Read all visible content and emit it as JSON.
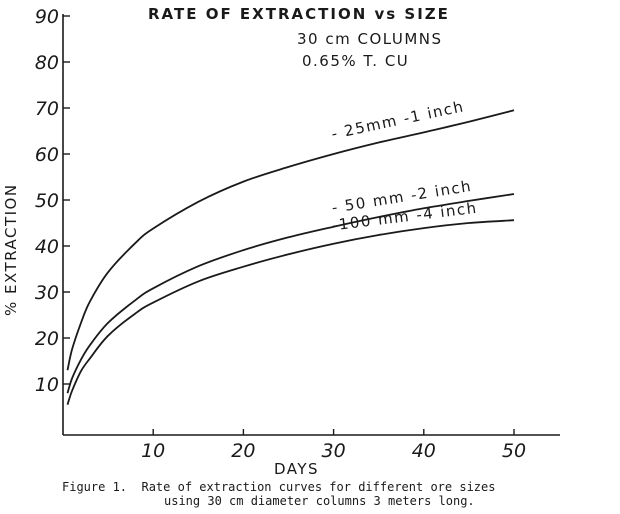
{
  "chart_data": {
    "type": "line",
    "title": "RATE OF EXTRACTION vs SIZE",
    "subtitle_lines": [
      "30 cm COLUMNS",
      "0.65% T. CU"
    ],
    "xlabel": "DAYS",
    "ylabel": "% EXTRACTION",
    "xlim": [
      0,
      55
    ],
    "ylim": [
      0,
      90
    ],
    "x_ticks": [
      10,
      20,
      30,
      40,
      50
    ],
    "x_tick_labels": [
      "10",
      "20",
      "30",
      "40",
      "50"
    ],
    "y_ticks": [
      10,
      20,
      30,
      40,
      50,
      60,
      70,
      80,
      90
    ],
    "y_tick_labels": [
      "10",
      "20",
      "30",
      "40",
      "50",
      "60",
      "70",
      "80",
      "90"
    ],
    "grid": false,
    "series": [
      {
        "name": "- 25mm -1 inch",
        "x": [
          0.5,
          1,
          2,
          3,
          5,
          8,
          10,
          15,
          20,
          25,
          30,
          35,
          40,
          45,
          50
        ],
        "y": [
          13,
          17.5,
          23.3,
          28,
          34.3,
          40.6,
          43.8,
          49.6,
          54,
          57.2,
          60,
          62.5,
          64.7,
          67,
          69.5
        ]
      },
      {
        "name": "- 50 mm -2 inch",
        "x": [
          0.5,
          1,
          2,
          3,
          5,
          8,
          10,
          15,
          20,
          25,
          30,
          35,
          40,
          45,
          50
        ],
        "y": [
          8,
          11.2,
          15.3,
          18.5,
          23.3,
          28.2,
          30.8,
          35.6,
          39.1,
          41.9,
          44.2,
          46.3,
          48.2,
          49.8,
          51.3
        ]
      },
      {
        "name": "-100 mm -4 inch",
        "x": [
          0.5,
          1,
          2,
          3,
          5,
          8,
          10,
          15,
          20,
          25,
          30,
          35,
          40,
          45,
          50
        ],
        "y": [
          5.5,
          8.5,
          12.8,
          15.6,
          20.5,
          25.3,
          27.7,
          32.3,
          35.5,
          38.2,
          40.5,
          42.4,
          43.9,
          45,
          45.6
        ]
      }
    ]
  },
  "caption": {
    "line1": "Figure 1.  Rate of extraction curves for different ore sizes",
    "line2": "using 30 cm diameter columns 3 meters long."
  }
}
